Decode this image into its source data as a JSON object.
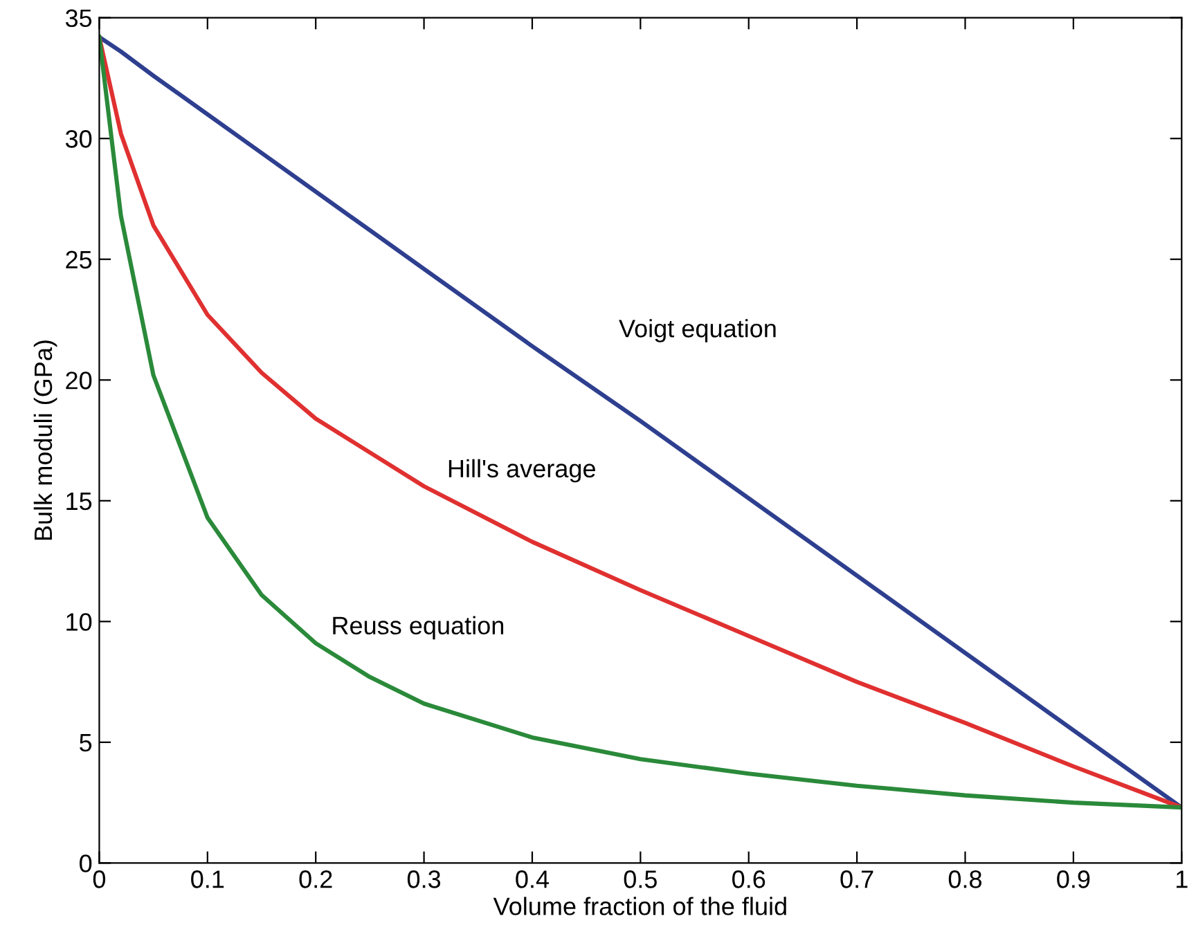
{
  "chart_data": {
    "type": "line",
    "xlabel": "Volume fraction of the fluid",
    "ylabel": "Bulk moduli (GPa)",
    "xlim": [
      0,
      1
    ],
    "ylim": [
      0,
      35
    ],
    "xticks": [
      0,
      0.1,
      0.2,
      0.3,
      0.4,
      0.5,
      0.6,
      0.7,
      0.8,
      0.9,
      1
    ],
    "yticks": [
      0,
      5,
      10,
      15,
      20,
      25,
      30,
      35
    ],
    "x": [
      0,
      0.02,
      0.05,
      0.1,
      0.15,
      0.2,
      0.25,
      0.3,
      0.4,
      0.5,
      0.6,
      0.7,
      0.8,
      0.9,
      1
    ],
    "series": [
      {
        "name": "Voigt equation",
        "color": "#2e3f8f",
        "values": [
          34.2,
          33.6,
          32.6,
          31.0,
          29.4,
          27.8,
          26.2,
          24.6,
          21.4,
          18.3,
          15.1,
          11.9,
          8.7,
          5.5,
          2.3
        ]
      },
      {
        "name": "Hill's average",
        "color": "#e03030",
        "values": [
          34.2,
          30.2,
          26.4,
          22.7,
          20.3,
          18.4,
          17.0,
          15.6,
          13.3,
          11.3,
          9.4,
          7.5,
          5.8,
          4.0,
          2.3
        ]
      },
      {
        "name": "Reuss equation",
        "color": "#2a8a3a",
        "values": [
          34.2,
          26.8,
          20.2,
          14.3,
          11.1,
          9.1,
          7.7,
          6.6,
          5.2,
          4.3,
          3.7,
          3.2,
          2.8,
          2.5,
          2.3
        ]
      }
    ],
    "grid": false,
    "legend": false
  }
}
